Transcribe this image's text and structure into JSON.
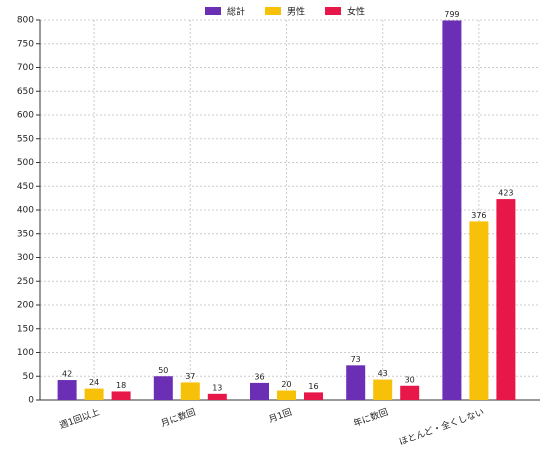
{
  "chart_data": {
    "type": "bar",
    "categories": [
      "週1回以上",
      "月に数回",
      "月1回",
      "年に数回",
      "ほとんど・全くしない"
    ],
    "series": [
      {
        "name": "総計",
        "color": "#6a2fb5",
        "values": [
          42,
          50,
          36,
          73,
          799
        ]
      },
      {
        "name": "男性",
        "color": "#f7c10a",
        "values": [
          24,
          37,
          20,
          43,
          376
        ]
      },
      {
        "name": "女性",
        "color": "#e8174a",
        "values": [
          18,
          13,
          16,
          30,
          423
        ]
      }
    ],
    "ylim": [
      0,
      800
    ],
    "yticks": [
      0,
      50,
      100,
      150,
      200,
      250,
      300,
      350,
      400,
      450,
      500,
      550,
      600,
      650,
      700,
      750,
      800
    ],
    "grid": true,
    "legend": "top"
  }
}
